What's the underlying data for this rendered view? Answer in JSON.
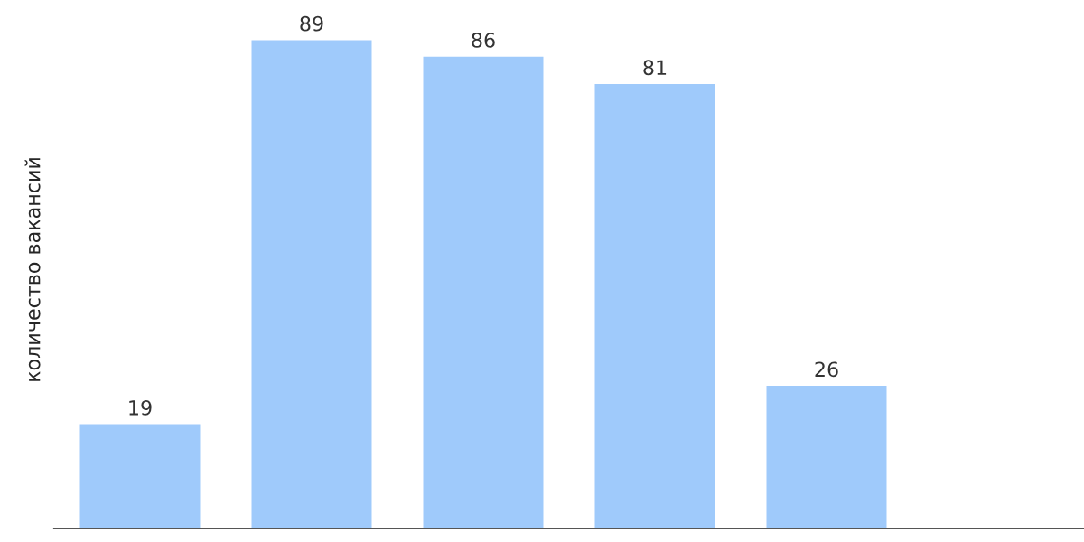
{
  "chart_data": {
    "type": "bar",
    "ylabel": "количество вакансий",
    "categories": [
      null,
      null,
      null,
      null,
      null
    ],
    "values": [
      19,
      89,
      86,
      81,
      26
    ],
    "color": "#9fcafb",
    "data_labels": true,
    "grid": false,
    "legend": false
  }
}
